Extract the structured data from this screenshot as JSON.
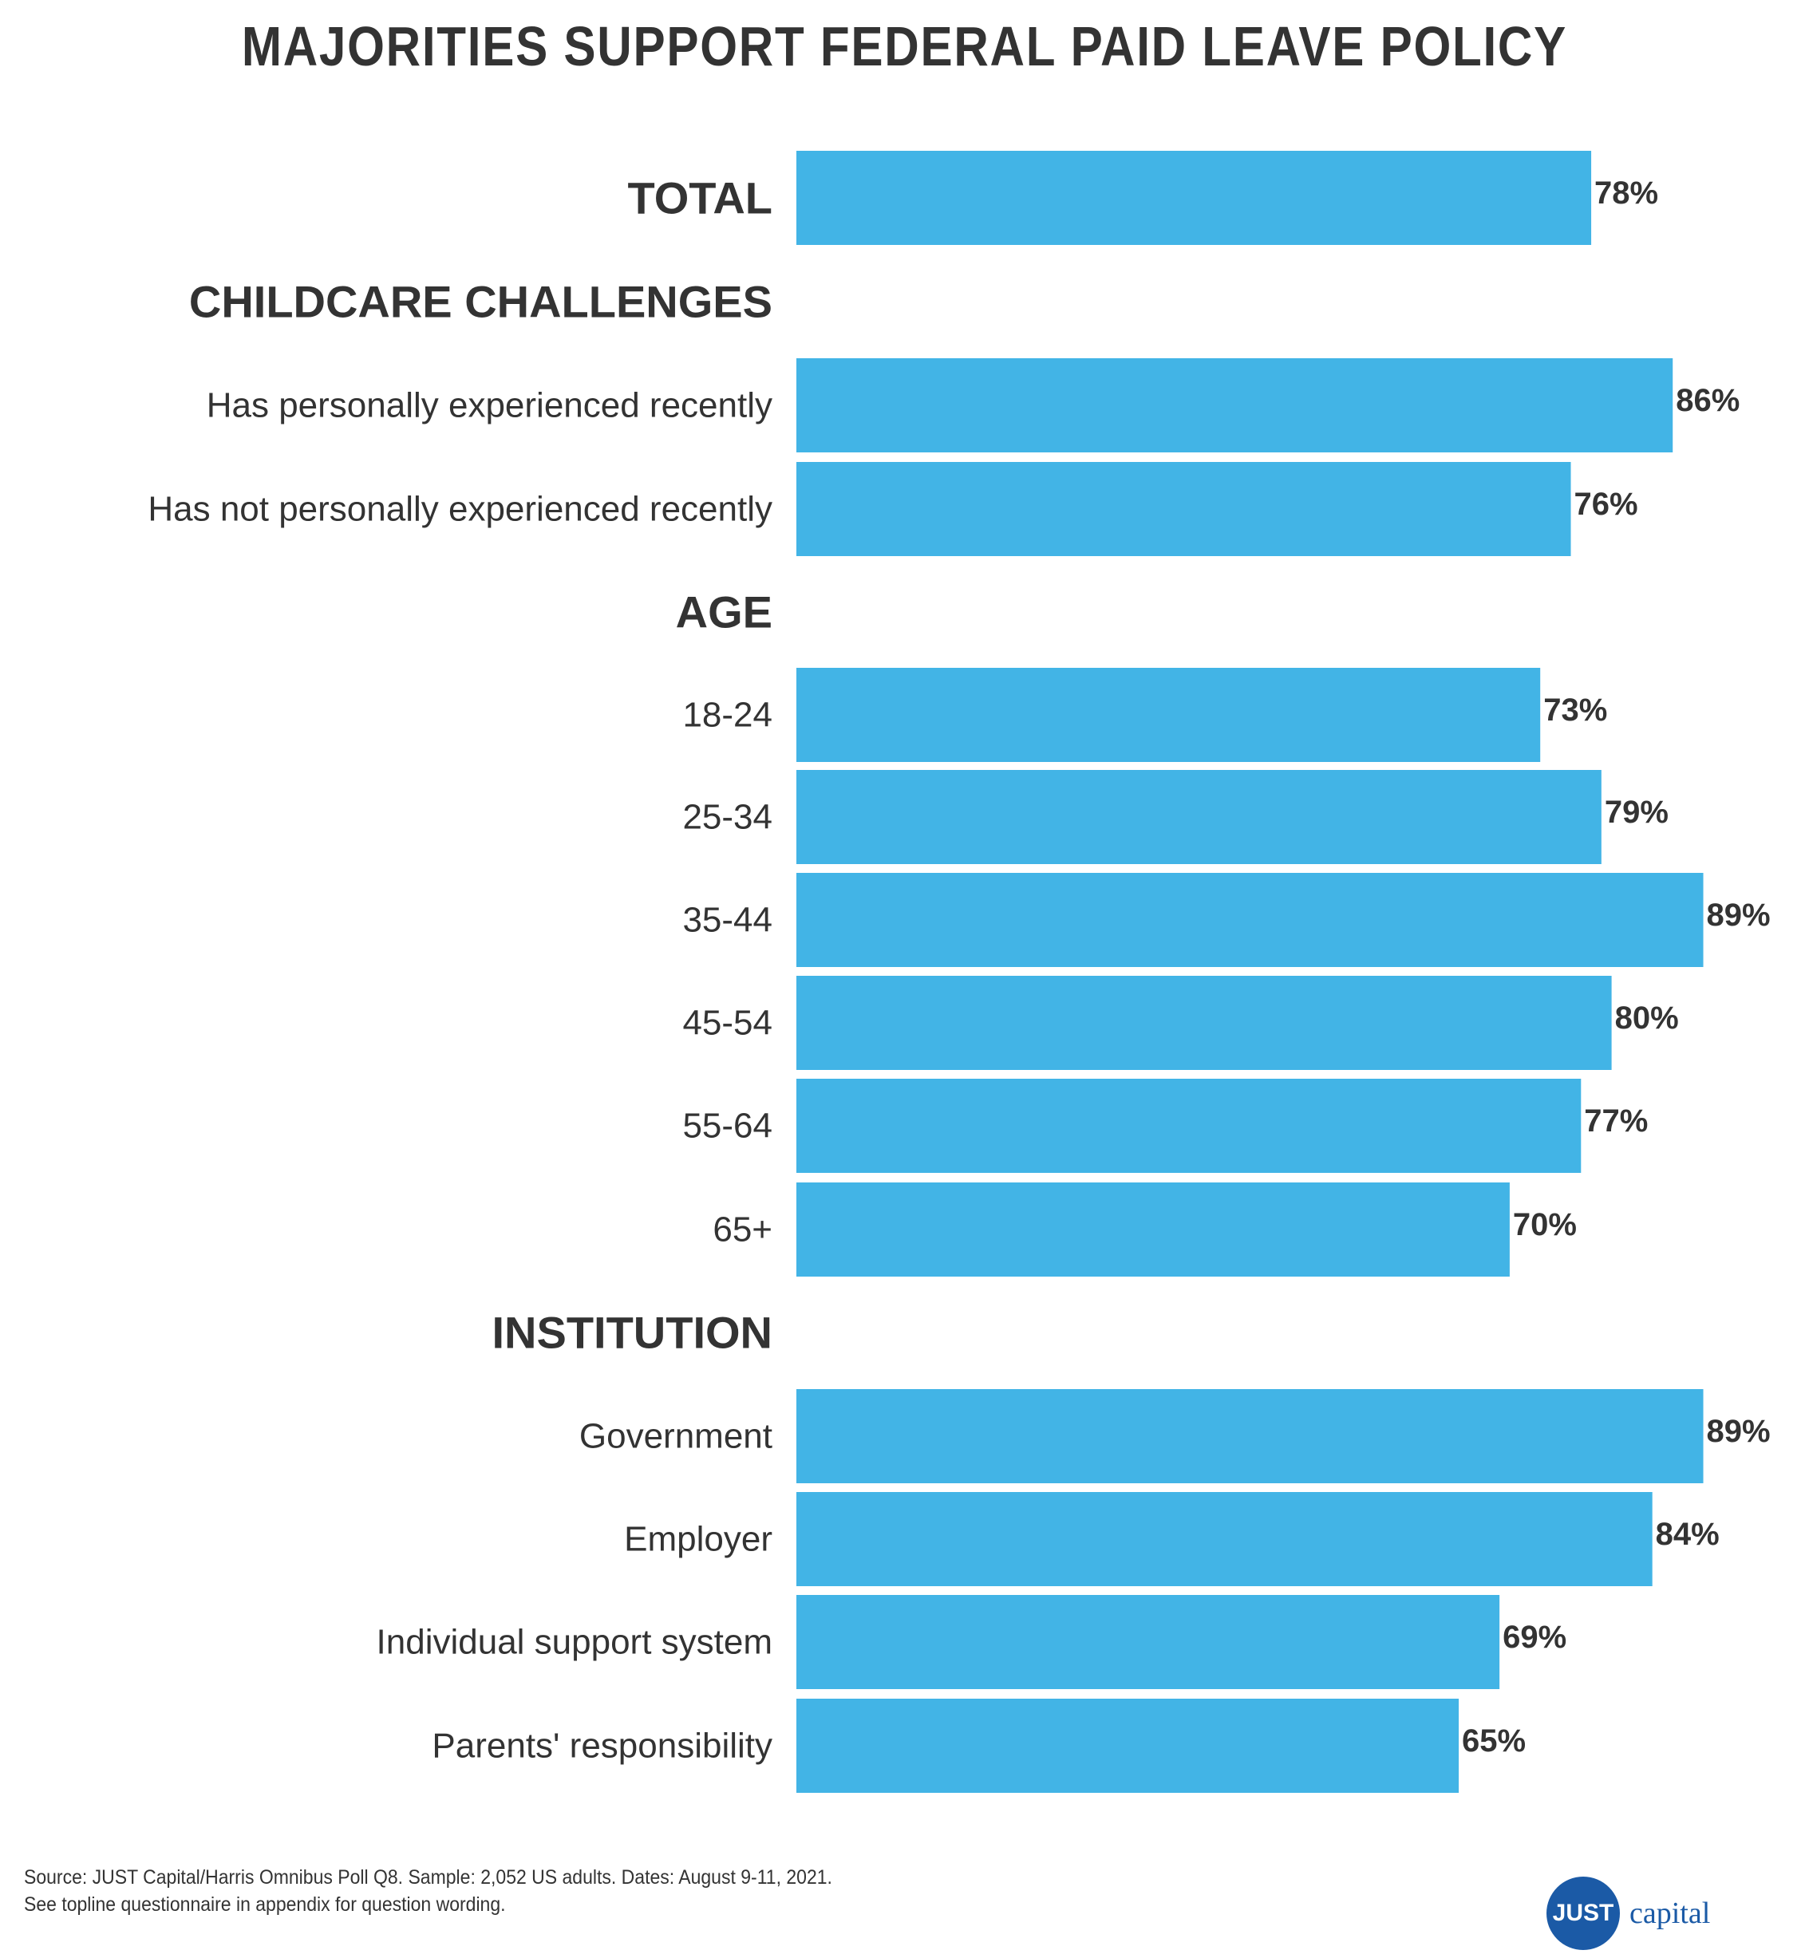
{
  "title": "MAJORITIES SUPPORT FEDERAL PAID LEAVE POLICY",
  "colors": {
    "bar": "#42b4e6",
    "text": "#333333",
    "logo": "#1b5aa6"
  },
  "chart_data": {
    "type": "bar",
    "orientation": "horizontal",
    "title": "MAJORITIES SUPPORT FEDERAL PAID LEAVE POLICY",
    "xlim": [
      0,
      100
    ],
    "grid": false,
    "rows": [
      {
        "label": "TOTAL",
        "value": 78,
        "value_label": "78%",
        "header": true
      },
      {
        "label": "CHILDCARE CHALLENGES",
        "section": true
      },
      {
        "label": "Has personally experienced recently",
        "value": 86,
        "value_label": "86%"
      },
      {
        "label": "Has not personally experienced recently",
        "value": 76,
        "value_label": "76%"
      },
      {
        "label": "AGE",
        "section": true
      },
      {
        "label": "18-24",
        "value": 73,
        "value_label": "73%"
      },
      {
        "label": "25-34",
        "value": 79,
        "value_label": "79%"
      },
      {
        "label": "35-44",
        "value": 89,
        "value_label": "89%"
      },
      {
        "label": "45-54",
        "value": 80,
        "value_label": "80%"
      },
      {
        "label": "55-64",
        "value": 77,
        "value_label": "77%"
      },
      {
        "label": "65+",
        "value": 70,
        "value_label": "70%"
      },
      {
        "label": "INSTITUTION",
        "section": true
      },
      {
        "label": "Government",
        "value": 89,
        "value_label": "89%"
      },
      {
        "label": "Employer",
        "value": 84,
        "value_label": "84%"
      },
      {
        "label": "Individual support system",
        "value": 69,
        "value_label": "69%"
      },
      {
        "label": "Parents' responsibility",
        "value": 65,
        "value_label": "65%"
      }
    ]
  },
  "footer": {
    "line1": "Source: JUST Capital/Harris Omnibus Poll Q8. Sample: 2,052 US adults. Dates: August 9-11, 2021.",
    "line2": "See topline questionnaire in appendix for question wording."
  },
  "logo": {
    "badge": "JUST",
    "word": "capital"
  }
}
